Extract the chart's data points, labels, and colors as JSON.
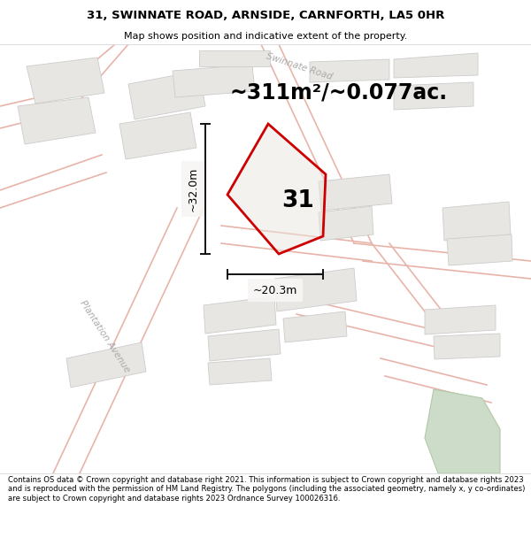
{
  "title_line1": "31, SWINNATE ROAD, ARNSIDE, CARNFORTH, LA5 0HR",
  "title_line2": "Map shows position and indicative extent of the property.",
  "area_text": "~311m²/~0.077ac.",
  "label_32m": "~32.0m",
  "label_20m": "~20.3m",
  "plot_number": "31",
  "footer_text": "Contains OS data © Crown copyright and database right 2021. This information is subject to Crown copyright and database rights 2023 and is reproduced with the permission of HM Land Registry. The polygons (including the associated geometry, namely x, y co-ordinates) are subject to Crown copyright and database rights 2023 Ordnance Survey 100026316.",
  "map_bg": "#f7f6f4",
  "road_fill": "#f0ede8",
  "road_edge": "#e8b4aa",
  "building_fill": "#e8e6e2",
  "building_edge": "#cccccc",
  "plot_color": "#cc0000",
  "green_fill": "#cddcc8",
  "green_edge": "#b0c8a8",
  "dim_color": "#111111",
  "road_label_color": "#aaaaaa",
  "street_label_color": "#aaaaaa"
}
